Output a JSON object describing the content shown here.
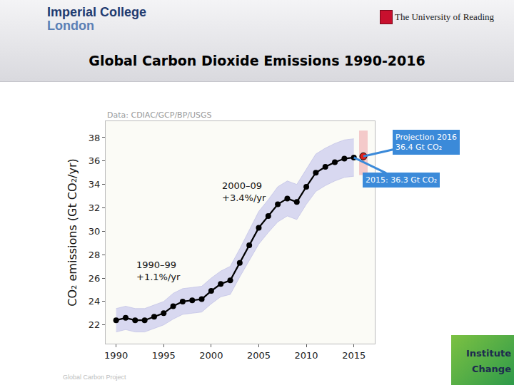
{
  "header": {
    "logo_left": [
      "Imperial College",
      "London"
    ],
    "logo_right": "The University of Reading",
    "title": "Global Carbon Dioxide Emissions 1990-2016"
  },
  "chart_data": {
    "type": "line",
    "source": "Data: CDIAC/GCP/BP/USGS",
    "y_label": "CO₂ emissions (Gt CO₂/yr)",
    "x": [
      1990,
      1991,
      1992,
      1993,
      1994,
      1995,
      1996,
      1997,
      1998,
      1999,
      2000,
      2001,
      2002,
      2003,
      2004,
      2005,
      2006,
      2007,
      2008,
      2009,
      2010,
      2011,
      2012,
      2013,
      2014,
      2015
    ],
    "values": [
      22.4,
      22.6,
      22.4,
      22.4,
      22.7,
      23.0,
      23.6,
      24.0,
      24.1,
      24.2,
      24.9,
      25.5,
      25.8,
      27.3,
      28.8,
      30.3,
      31.3,
      32.3,
      32.8,
      32.5,
      33.8,
      35.0,
      35.5,
      35.9,
      36.2,
      36.3
    ],
    "color": "#000000",
    "marker": "circle",
    "uncertainty": {
      "lower": [
        21.4,
        21.6,
        21.4,
        21.4,
        21.7,
        22.0,
        22.5,
        22.9,
        23.0,
        23.1,
        23.8,
        24.4,
        24.6,
        26.1,
        27.5,
        28.9,
        29.9,
        30.8,
        31.3,
        31.0,
        32.3,
        33.4,
        33.9,
        34.3,
        34.6,
        34.7
      ],
      "upper": [
        23.4,
        23.6,
        23.4,
        23.4,
        23.7,
        24.0,
        24.7,
        25.1,
        25.2,
        25.3,
        26.0,
        26.6,
        27.0,
        28.5,
        30.1,
        31.7,
        32.7,
        33.8,
        34.3,
        34.0,
        35.3,
        36.6,
        37.1,
        37.5,
        37.8,
        37.9
      ],
      "color": "#d8d8f0"
    },
    "projection": {
      "x": 2016,
      "value": 36.4,
      "lower": 34.8,
      "upper": 38.6,
      "color": "#e0201c",
      "band_color": "#f4caca"
    },
    "annotations": [
      {
        "text": [
          "2000–09",
          "+3.4%/yr"
        ],
        "x": 2001,
        "y": 33.4
      },
      {
        "text": [
          "1990–99",
          "+1.1%/yr"
        ],
        "x": 1992,
        "y": 26.6
      }
    ],
    "callouts": [
      {
        "text": [
          "Projection 2016",
          "36.4 Gt CO₂"
        ],
        "x": 2016,
        "y": 36.4,
        "color": "#3b8ad9"
      },
      {
        "text": [
          "2015: 36.3 Gt CO₂"
        ],
        "x": 2015,
        "y": 36.3,
        "color": "#3b8ad9"
      }
    ],
    "xlim": [
      1988.9,
      2017.2
    ],
    "ylim": [
      20.4,
      39.4
    ],
    "xticks": [
      1990,
      1995,
      2000,
      2005,
      2010,
      2015
    ],
    "yticks": [
      22,
      24,
      26,
      28,
      30,
      32,
      34,
      36,
      38
    ],
    "grid": false
  },
  "footer": {
    "credit": "Global Carbon Project",
    "logo": [
      "Institute",
      "Change"
    ]
  }
}
